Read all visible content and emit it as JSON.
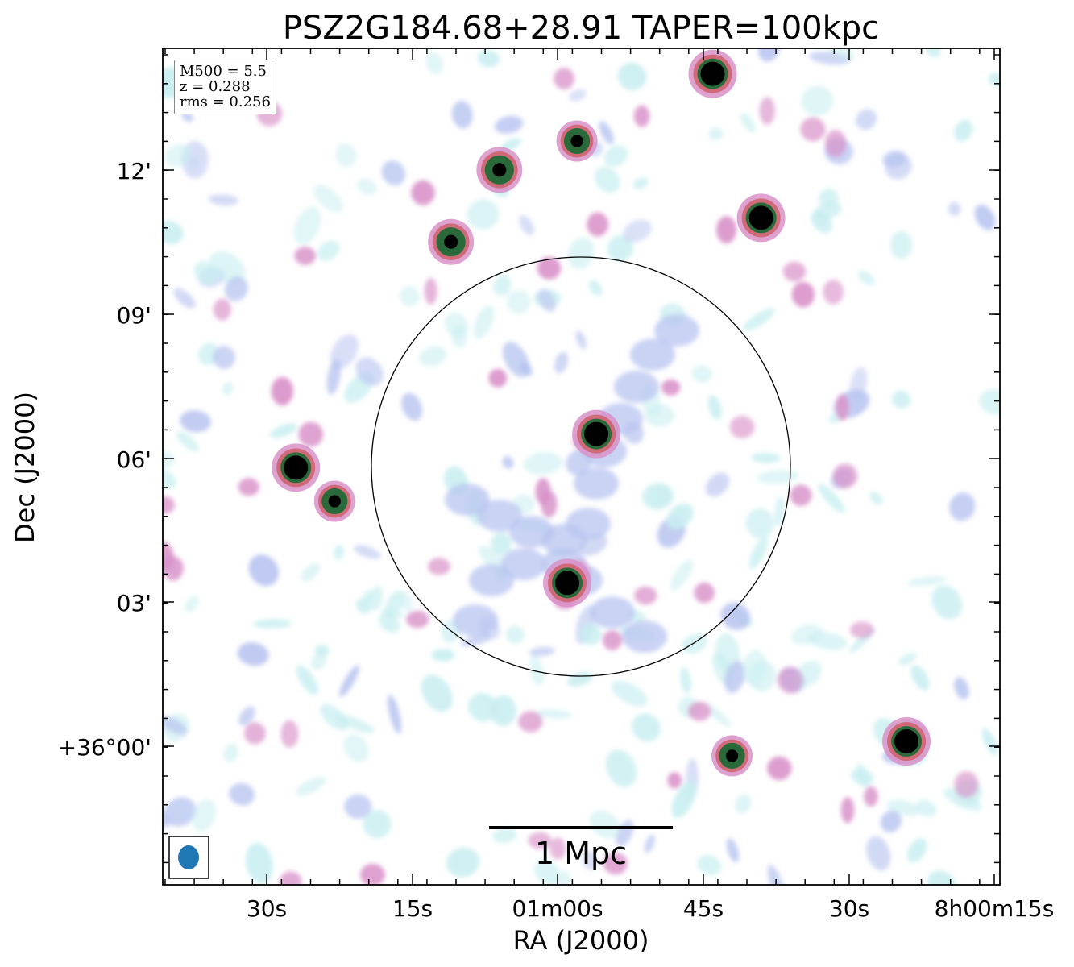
{
  "chart_data": {
    "type": "heatmap",
    "title": "PSZ2G184.68+28.91 TAPER=100kpc",
    "xlabel": "RA (J2000)",
    "ylabel": "Dec (J2000)",
    "x_ticks": [
      "30s",
      "15s",
      "01m00s",
      "45s",
      "30s",
      "8h00m15s"
    ],
    "y_ticks": [
      "12'",
      "09'",
      "06'",
      "03'",
      "+36°00'"
    ],
    "info": [
      "M500 = 5.5",
      "z = 0.288",
      "rms = 0.256"
    ],
    "scalebar_label": "1 Mpc",
    "sources": [
      {
        "ra": "8h01m27s",
        "dec": "36°05.8'",
        "peak": 1.0
      },
      {
        "ra": "8h01m23s",
        "dec": "36°05.1'",
        "peak": 0.85
      },
      {
        "ra": "8h01m11s",
        "dec": "36°10.5'",
        "peak": 0.95
      },
      {
        "ra": "8h01m06s",
        "dec": "36°12.0'",
        "peak": 0.95
      },
      {
        "ra": "8h00m58s",
        "dec": "36°12.6'",
        "peak": 0.85
      },
      {
        "ra": "8h00m56s",
        "dec": "36°06.5'",
        "peak": 1.0
      },
      {
        "ra": "8h00m59s",
        "dec": "36°03.4'",
        "peak": 1.0
      },
      {
        "ra": "8h00m39s",
        "dec": "36°11.0'",
        "peak": 1.0
      },
      {
        "ra": "8h00m44s",
        "dec": "36°14.0'",
        "peak": 1.0
      },
      {
        "ra": "8h00m24s",
        "dec": "36°00.1'",
        "peak": 1.0
      },
      {
        "ra": "8h00m42s",
        "dec": "35°59.8'",
        "peak": 0.85
      }
    ]
  },
  "colors": {
    "background": "#ffffff",
    "low": "#c8eef0",
    "mid": "#b8c4f0",
    "pink": "#d890c8",
    "red": "#d06a78",
    "green": "#2a6a3a",
    "high": "#000000",
    "beam": "#1f77b4"
  }
}
